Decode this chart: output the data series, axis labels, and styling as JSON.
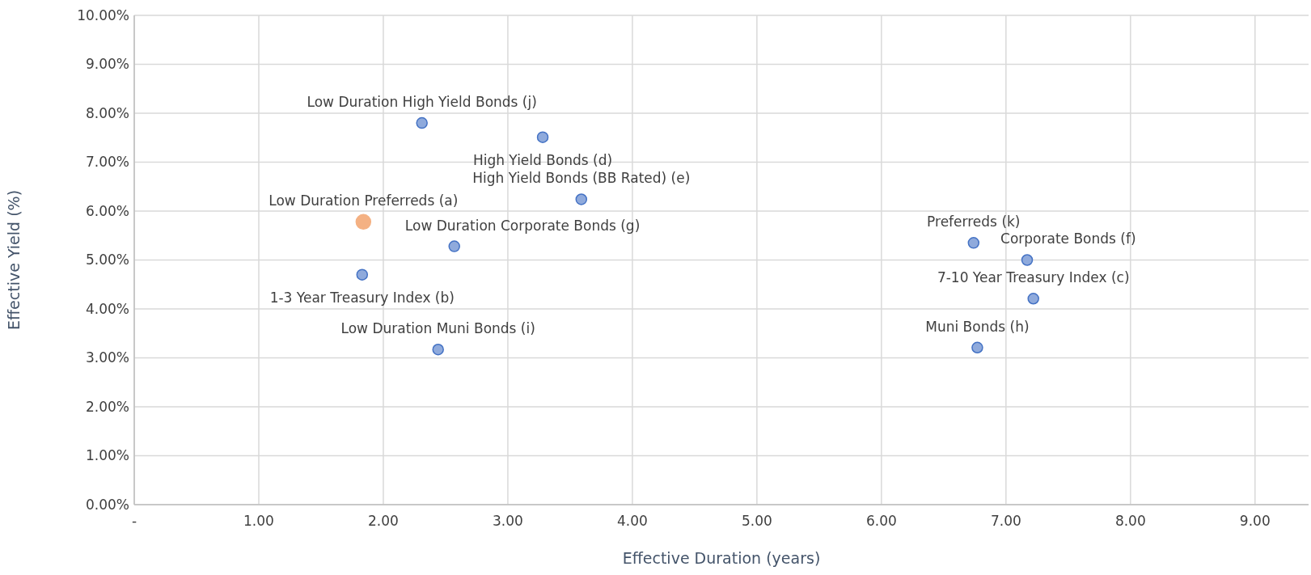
{
  "chart_data": {
    "type": "scatter",
    "xlabel": "Effective Duration (years)",
    "ylabel": "Effective Yield (%)",
    "xlim": [
      0,
      9.43
    ],
    "ylim": [
      0,
      10
    ],
    "xticks": [
      {
        "value": 0,
        "label": "-"
      },
      {
        "value": 1,
        "label": "1.00"
      },
      {
        "value": 2,
        "label": "2.00"
      },
      {
        "value": 3,
        "label": "3.00"
      },
      {
        "value": 4,
        "label": "4.00"
      },
      {
        "value": 5,
        "label": "5.00"
      },
      {
        "value": 6,
        "label": "6.00"
      },
      {
        "value": 7,
        "label": "7.00"
      },
      {
        "value": 8,
        "label": "8.00"
      },
      {
        "value": 9,
        "label": "9.00"
      }
    ],
    "yticks": [
      {
        "value": 0,
        "label": "0.00%"
      },
      {
        "value": 1,
        "label": "1.00%"
      },
      {
        "value": 2,
        "label": "2.00%"
      },
      {
        "value": 3,
        "label": "3.00%"
      },
      {
        "value": 4,
        "label": "4.00%"
      },
      {
        "value": 5,
        "label": "5.00%"
      },
      {
        "value": 6,
        "label": "6.00%"
      },
      {
        "value": 7,
        "label": "7.00%"
      },
      {
        "value": 8,
        "label": "8.00%"
      },
      {
        "value": 9,
        "label": "9.00%"
      },
      {
        "value": 10,
        "label": "10.00%"
      }
    ],
    "grid": true,
    "marker": "circle",
    "series": [
      {
        "color": "#8faadc",
        "x": [
          1.83,
          7.22,
          3.28,
          3.59,
          7.17,
          2.57,
          6.77,
          2.44,
          2.31,
          6.74
        ],
        "values": [
          4.7,
          4.21,
          7.51,
          6.24,
          5.0,
          5.28,
          3.21,
          3.17,
          7.8,
          5.35
        ]
      },
      {
        "color": "#f4b183",
        "x": [
          1.84
        ],
        "values": [
          5.78
        ]
      }
    ],
    "annotations": [
      {
        "text": "Low Duration Preferreds (a)",
        "x": 1.84,
        "y": 5.78
      },
      {
        "text": "1-3 Year Treasury Index (b)",
        "x": 1.83,
        "y": 4.7
      },
      {
        "text": "7-10 Year Treasury Index (c)",
        "x": 7.22,
        "y": 4.21
      },
      {
        "text": "High Yield Bonds (d)",
        "x": 3.28,
        "y": 7.51
      },
      {
        "text": "High Yield Bonds (BB Rated) (e)",
        "x": 3.59,
        "y": 6.24
      },
      {
        "text": "Corporate Bonds (f)",
        "x": 7.17,
        "y": 5.0
      },
      {
        "text": "Low Duration Corporate Bonds (g)",
        "x": 2.57,
        "y": 5.28
      },
      {
        "text": "Muni Bonds (h)",
        "x": 6.77,
        "y": 3.21
      },
      {
        "text": "Low Duration Muni Bonds (i)",
        "x": 2.44,
        "y": 3.17
      },
      {
        "text": "Low Duration High Yield Bonds (j)",
        "x": 2.31,
        "y": 7.8
      },
      {
        "text": "Preferreds (k)",
        "x": 6.74,
        "y": 5.35
      }
    ]
  }
}
